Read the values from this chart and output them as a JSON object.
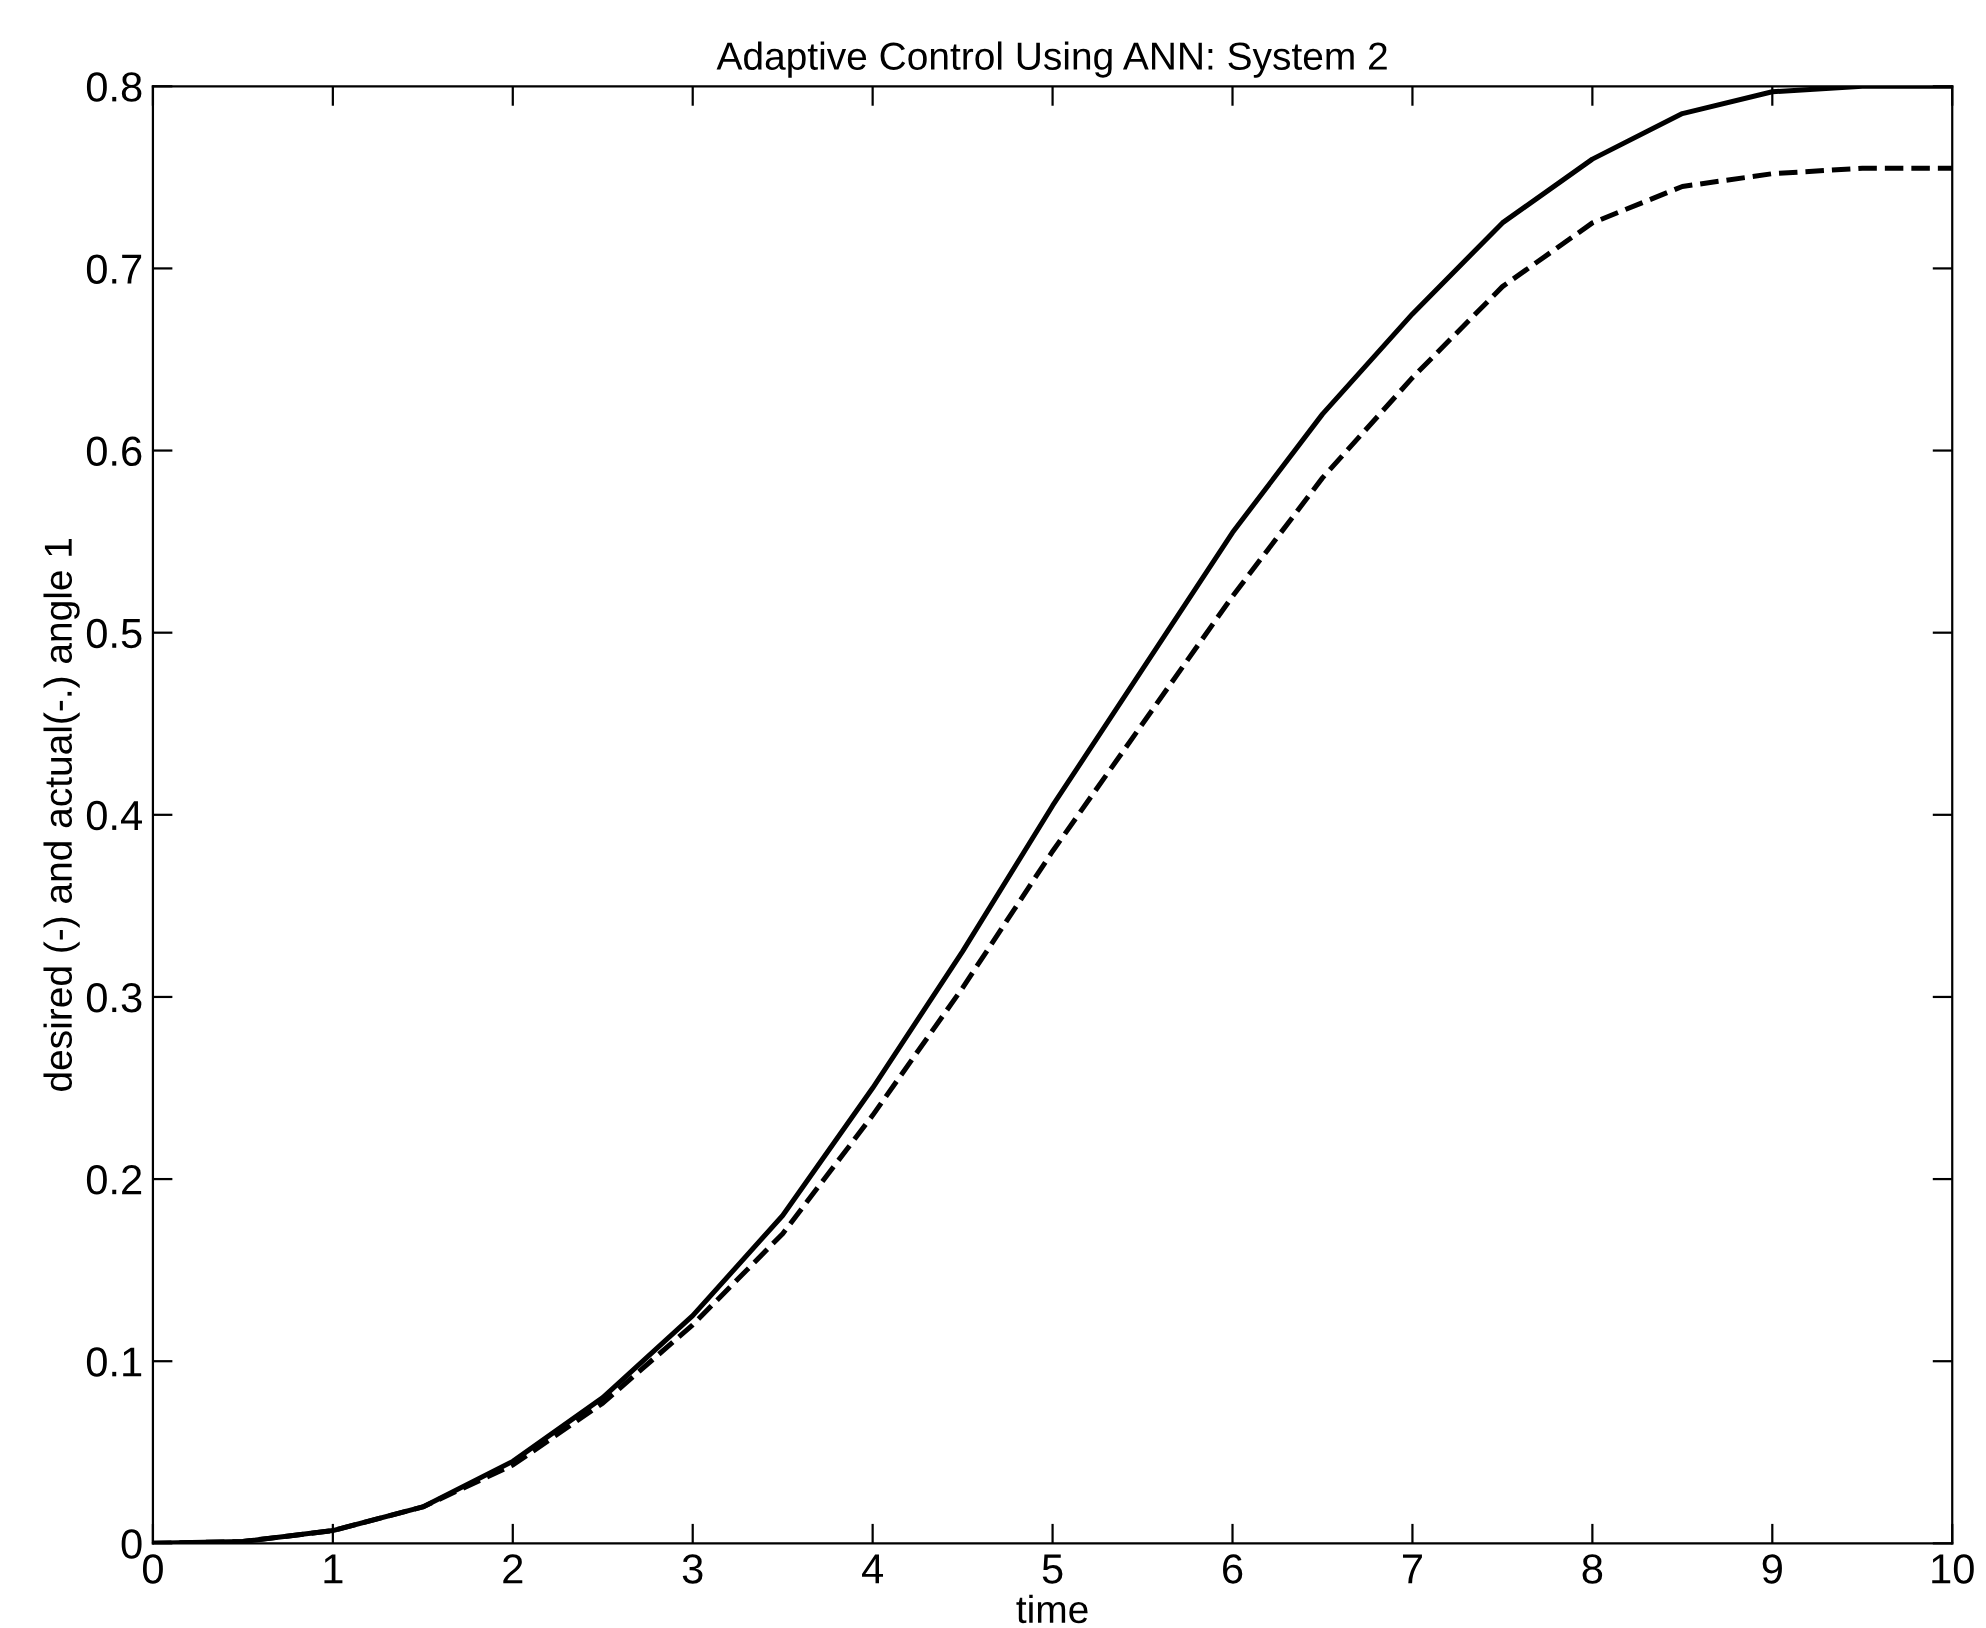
{
  "chart_data": {
    "type": "line",
    "title": "Adaptive Control Using ANN: System 2",
    "xlabel": "time",
    "ylabel": "desired (-) and actual(-.) angle 1",
    "x": [
      0,
      0.5,
      1,
      1.5,
      2,
      2.5,
      3,
      3.5,
      4,
      4.5,
      5,
      5.5,
      6,
      6.5,
      7,
      7.5,
      8,
      8.5,
      9,
      9.5,
      10
    ],
    "series": [
      {
        "color": "#000000",
        "line_style": "solid",
        "values": [
          0,
          0.001,
          0.007,
          0.02,
          0.045,
          0.08,
          0.125,
          0.18,
          0.25,
          0.325,
          0.405,
          0.48,
          0.555,
          0.62,
          0.675,
          0.725,
          0.76,
          0.785,
          0.797,
          0.8,
          0.8
        ]
      },
      {
        "color": "#000000",
        "line_style": "dashed",
        "values": [
          0,
          0.001,
          0.007,
          0.02,
          0.043,
          0.077,
          0.12,
          0.17,
          0.235,
          0.305,
          0.38,
          0.45,
          0.52,
          0.585,
          0.64,
          0.69,
          0.725,
          0.745,
          0.752,
          0.755,
          0.755
        ]
      }
    ],
    "xlim": [
      0,
      10
    ],
    "ylim": [
      0,
      0.8
    ],
    "xticks": [
      0,
      1,
      2,
      3,
      4,
      5,
      6,
      7,
      8,
      9,
      10
    ],
    "yticks": [
      0,
      0.1,
      0.2,
      0.3,
      0.4,
      0.5,
      0.6,
      0.7,
      0.8
    ],
    "grid": false,
    "legend": false,
    "marker": "none"
  }
}
